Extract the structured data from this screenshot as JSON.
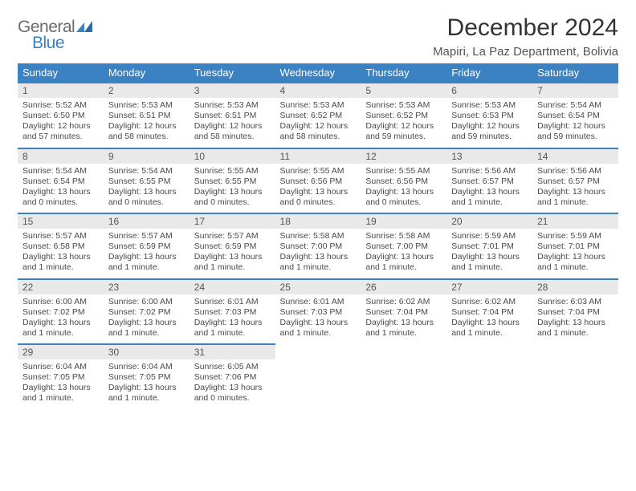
{
  "logo": {
    "general": "General",
    "blue": "Blue"
  },
  "header": {
    "title": "December 2024",
    "subtitle": "Mapiri, La Paz Department, Bolivia"
  },
  "colors": {
    "header_bg": "#3b82c4",
    "header_fg": "#ffffff",
    "daynum_bg": "#e9e9e9",
    "border": "#3b82c4",
    "title_color": "#333333",
    "logo_gray": "#6b6b6b",
    "logo_blue": "#3b82c4"
  },
  "weekdays": [
    "Sunday",
    "Monday",
    "Tuesday",
    "Wednesday",
    "Thursday",
    "Friday",
    "Saturday"
  ],
  "days": [
    {
      "n": "1",
      "sr": "Sunrise: 5:52 AM",
      "ss": "Sunset: 6:50 PM",
      "d1": "Daylight: 12 hours",
      "d2": "and 57 minutes."
    },
    {
      "n": "2",
      "sr": "Sunrise: 5:53 AM",
      "ss": "Sunset: 6:51 PM",
      "d1": "Daylight: 12 hours",
      "d2": "and 58 minutes."
    },
    {
      "n": "3",
      "sr": "Sunrise: 5:53 AM",
      "ss": "Sunset: 6:51 PM",
      "d1": "Daylight: 12 hours",
      "d2": "and 58 minutes."
    },
    {
      "n": "4",
      "sr": "Sunrise: 5:53 AM",
      "ss": "Sunset: 6:52 PM",
      "d1": "Daylight: 12 hours",
      "d2": "and 58 minutes."
    },
    {
      "n": "5",
      "sr": "Sunrise: 5:53 AM",
      "ss": "Sunset: 6:52 PM",
      "d1": "Daylight: 12 hours",
      "d2": "and 59 minutes."
    },
    {
      "n": "6",
      "sr": "Sunrise: 5:53 AM",
      "ss": "Sunset: 6:53 PM",
      "d1": "Daylight: 12 hours",
      "d2": "and 59 minutes."
    },
    {
      "n": "7",
      "sr": "Sunrise: 5:54 AM",
      "ss": "Sunset: 6:54 PM",
      "d1": "Daylight: 12 hours",
      "d2": "and 59 minutes."
    },
    {
      "n": "8",
      "sr": "Sunrise: 5:54 AM",
      "ss": "Sunset: 6:54 PM",
      "d1": "Daylight: 13 hours",
      "d2": "and 0 minutes."
    },
    {
      "n": "9",
      "sr": "Sunrise: 5:54 AM",
      "ss": "Sunset: 6:55 PM",
      "d1": "Daylight: 13 hours",
      "d2": "and 0 minutes."
    },
    {
      "n": "10",
      "sr": "Sunrise: 5:55 AM",
      "ss": "Sunset: 6:55 PM",
      "d1": "Daylight: 13 hours",
      "d2": "and 0 minutes."
    },
    {
      "n": "11",
      "sr": "Sunrise: 5:55 AM",
      "ss": "Sunset: 6:56 PM",
      "d1": "Daylight: 13 hours",
      "d2": "and 0 minutes."
    },
    {
      "n": "12",
      "sr": "Sunrise: 5:55 AM",
      "ss": "Sunset: 6:56 PM",
      "d1": "Daylight: 13 hours",
      "d2": "and 0 minutes."
    },
    {
      "n": "13",
      "sr": "Sunrise: 5:56 AM",
      "ss": "Sunset: 6:57 PM",
      "d1": "Daylight: 13 hours",
      "d2": "and 1 minute."
    },
    {
      "n": "14",
      "sr": "Sunrise: 5:56 AM",
      "ss": "Sunset: 6:57 PM",
      "d1": "Daylight: 13 hours",
      "d2": "and 1 minute."
    },
    {
      "n": "15",
      "sr": "Sunrise: 5:57 AM",
      "ss": "Sunset: 6:58 PM",
      "d1": "Daylight: 13 hours",
      "d2": "and 1 minute."
    },
    {
      "n": "16",
      "sr": "Sunrise: 5:57 AM",
      "ss": "Sunset: 6:59 PM",
      "d1": "Daylight: 13 hours",
      "d2": "and 1 minute."
    },
    {
      "n": "17",
      "sr": "Sunrise: 5:57 AM",
      "ss": "Sunset: 6:59 PM",
      "d1": "Daylight: 13 hours",
      "d2": "and 1 minute."
    },
    {
      "n": "18",
      "sr": "Sunrise: 5:58 AM",
      "ss": "Sunset: 7:00 PM",
      "d1": "Daylight: 13 hours",
      "d2": "and 1 minute."
    },
    {
      "n": "19",
      "sr": "Sunrise: 5:58 AM",
      "ss": "Sunset: 7:00 PM",
      "d1": "Daylight: 13 hours",
      "d2": "and 1 minute."
    },
    {
      "n": "20",
      "sr": "Sunrise: 5:59 AM",
      "ss": "Sunset: 7:01 PM",
      "d1": "Daylight: 13 hours",
      "d2": "and 1 minute."
    },
    {
      "n": "21",
      "sr": "Sunrise: 5:59 AM",
      "ss": "Sunset: 7:01 PM",
      "d1": "Daylight: 13 hours",
      "d2": "and 1 minute."
    },
    {
      "n": "22",
      "sr": "Sunrise: 6:00 AM",
      "ss": "Sunset: 7:02 PM",
      "d1": "Daylight: 13 hours",
      "d2": "and 1 minute."
    },
    {
      "n": "23",
      "sr": "Sunrise: 6:00 AM",
      "ss": "Sunset: 7:02 PM",
      "d1": "Daylight: 13 hours",
      "d2": "and 1 minute."
    },
    {
      "n": "24",
      "sr": "Sunrise: 6:01 AM",
      "ss": "Sunset: 7:03 PM",
      "d1": "Daylight: 13 hours",
      "d2": "and 1 minute."
    },
    {
      "n": "25",
      "sr": "Sunrise: 6:01 AM",
      "ss": "Sunset: 7:03 PM",
      "d1": "Daylight: 13 hours",
      "d2": "and 1 minute."
    },
    {
      "n": "26",
      "sr": "Sunrise: 6:02 AM",
      "ss": "Sunset: 7:04 PM",
      "d1": "Daylight: 13 hours",
      "d2": "and 1 minute."
    },
    {
      "n": "27",
      "sr": "Sunrise: 6:02 AM",
      "ss": "Sunset: 7:04 PM",
      "d1": "Daylight: 13 hours",
      "d2": "and 1 minute."
    },
    {
      "n": "28",
      "sr": "Sunrise: 6:03 AM",
      "ss": "Sunset: 7:04 PM",
      "d1": "Daylight: 13 hours",
      "d2": "and 1 minute."
    },
    {
      "n": "29",
      "sr": "Sunrise: 6:04 AM",
      "ss": "Sunset: 7:05 PM",
      "d1": "Daylight: 13 hours",
      "d2": "and 1 minute."
    },
    {
      "n": "30",
      "sr": "Sunrise: 6:04 AM",
      "ss": "Sunset: 7:05 PM",
      "d1": "Daylight: 13 hours",
      "d2": "and 1 minute."
    },
    {
      "n": "31",
      "sr": "Sunrise: 6:05 AM",
      "ss": "Sunset: 7:06 PM",
      "d1": "Daylight: 13 hours",
      "d2": "and 0 minutes."
    }
  ]
}
